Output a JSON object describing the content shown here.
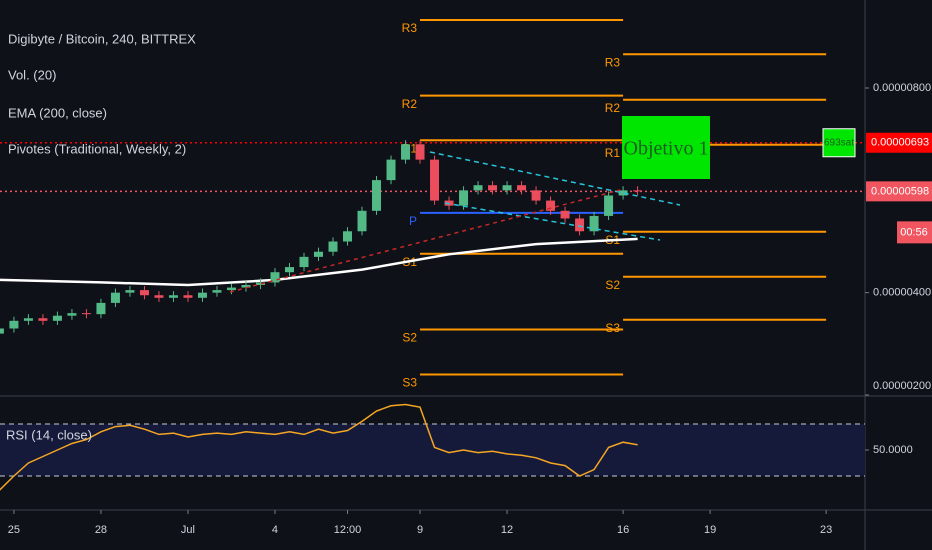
{
  "chart_data": {
    "type": "candlestick",
    "title": "Digibyte / Bitcoin, 240, BITTREX",
    "indicators": [
      "Vol. (20)",
      "EMA (200, close)",
      "Pivotes (Traditional, Weekly, 2)"
    ],
    "x": [
      -0.5,
      0,
      0.5,
      1,
      1.5,
      2,
      2.5,
      3,
      3.5,
      4,
      4.5,
      5,
      5.5,
      6,
      6.5,
      7,
      7.5,
      8,
      8.5,
      9,
      9.5,
      10,
      10.5,
      11,
      11.5,
      12,
      12.5,
      13,
      13.5,
      14,
      14.5,
      15,
      15.5,
      16,
      16.5,
      17,
      17.5,
      18,
      18.5,
      19,
      19.5,
      20,
      20.5,
      21,
      21.5
    ],
    "open": [
      3.2e-06,
      3.3e-06,
      3.45e-06,
      3.5e-06,
      3.45e-06,
      3.55e-06,
      3.6e-06,
      3.58e-06,
      3.8e-06,
      4e-06,
      4.05e-06,
      3.95e-06,
      3.9e-06,
      3.95e-06,
      3.9e-06,
      4e-06,
      4.05e-06,
      4.1e-06,
      4.15e-06,
      4.2e-06,
      4.4e-06,
      4.5e-06,
      4.7e-06,
      4.8e-06,
      5e-06,
      5.2e-06,
      5.6e-06,
      6.2e-06,
      6.6e-06,
      6.9e-06,
      6.6e-06,
      5.8e-06,
      5.7e-06,
      6e-06,
      6.1e-06,
      6e-06,
      6.1e-06,
      6e-06,
      5.8e-06,
      5.6e-06,
      5.45e-06,
      5.2e-06,
      5.5e-06,
      5.9e-06,
      6e-06
    ],
    "high": [
      3.38e-06,
      3.53e-06,
      3.58e-06,
      3.58e-06,
      3.63e-06,
      3.68e-06,
      3.68e-06,
      3.88e-06,
      4.08e-06,
      4.13e-06,
      4.13e-06,
      4.03e-06,
      4.03e-06,
      4.03e-06,
      4.08e-06,
      4.13e-06,
      4.18e-06,
      4.23e-06,
      4.28e-06,
      4.48e-06,
      4.58e-06,
      4.78e-06,
      4.88e-06,
      5.08e-06,
      5.28e-06,
      5.68e-06,
      6.28e-06,
      6.68e-06,
      6.98e-06,
      6.98e-06,
      6.68e-06,
      5.88e-06,
      6.08e-06,
      6.18e-06,
      6.18e-06,
      6.18e-06,
      6.18e-06,
      6.08e-06,
      5.88e-06,
      5.68e-06,
      5.53e-06,
      5.58e-06,
      5.98e-06,
      6.08e-06,
      6.08e-06
    ],
    "low": [
      3.12e-06,
      3.22e-06,
      3.37e-06,
      3.37e-06,
      3.37e-06,
      3.47e-06,
      3.5e-06,
      3.5e-06,
      3.72e-06,
      3.92e-06,
      3.87e-06,
      3.82e-06,
      3.82e-06,
      3.82e-06,
      3.82e-06,
      3.92e-06,
      3.97e-06,
      4.02e-06,
      4.07e-06,
      4.12e-06,
      4.32e-06,
      4.42e-06,
      4.62e-06,
      4.72e-06,
      4.92e-06,
      5.12e-06,
      5.52e-06,
      6.12e-06,
      6.52e-06,
      6.52e-06,
      5.72e-06,
      5.62e-06,
      5.62e-06,
      5.92e-06,
      5.92e-06,
      5.92e-06,
      5.92e-06,
      5.72e-06,
      5.52e-06,
      5.37e-06,
      5.12e-06,
      5.12e-06,
      5.42e-06,
      5.82e-06,
      5.9e-06
    ],
    "close": [
      3.3e-06,
      3.45e-06,
      3.5e-06,
      3.45e-06,
      3.55e-06,
      3.6e-06,
      3.58e-06,
      3.8e-06,
      4e-06,
      4.05e-06,
      3.95e-06,
      3.9e-06,
      3.95e-06,
      3.9e-06,
      4e-06,
      4.05e-06,
      4.1e-06,
      4.15e-06,
      4.2e-06,
      4.4e-06,
      4.5e-06,
      4.7e-06,
      4.8e-06,
      5e-06,
      5.2e-06,
      5.6e-06,
      6.2e-06,
      6.6e-06,
      6.9e-06,
      6.6e-06,
      5.8e-06,
      5.7e-06,
      6e-06,
      6.1e-06,
      6e-06,
      6.1e-06,
      6e-06,
      5.8e-06,
      5.6e-06,
      5.45e-06,
      5.2e-06,
      5.5e-06,
      5.9e-06,
      6e-06,
      5.98e-06
    ],
    "up_color": "#53b987",
    "down_color": "#eb4d5c",
    "ema": {
      "x": [
        -0.5,
        3,
        6,
        9,
        12,
        15,
        18,
        21.5
      ],
      "values": [
        4.25e-06,
        4.2e-06,
        4.15e-06,
        4.25e-06,
        4.45e-06,
        4.75e-06,
        4.95e-06,
        5.05e-06
      ],
      "color": "#ffffff"
    },
    "pivots": [
      {
        "start": 14,
        "end": 21,
        "levels": [
          {
            "label": "R3",
            "value": 9.33e-06
          },
          {
            "label": "R2",
            "value": 7.85e-06
          },
          {
            "label": "R1",
            "value": 6.98e-06
          },
          {
            "label": "P",
            "value": 5.56e-06,
            "color": "#2962ff"
          },
          {
            "label": "S1",
            "value": 4.76e-06
          },
          {
            "label": "S2",
            "value": 3.28e-06
          },
          {
            "label": "S3",
            "value": 2.4e-06
          }
        ]
      },
      {
        "start": 21,
        "end": 28,
        "levels": [
          {
            "label": "R3",
            "value": 8.66e-06
          },
          {
            "label": "R2",
            "value": 7.77e-06
          },
          {
            "label": "R1",
            "value": 6.89e-06
          },
          {
            "label": "S1",
            "value": 5.19e-06
          },
          {
            "label": "S2",
            "value": 4.31e-06
          },
          {
            "label": "S3",
            "value": 3.47e-06
          }
        ]
      }
    ],
    "pivot_color": "#ff9800",
    "price_lines": [
      {
        "value": 6.93e-06,
        "label": "0.00000693",
        "color": "#ff0000"
      },
      {
        "value": 5.98e-06,
        "label": "0.00000598",
        "color": "#f05560"
      }
    ],
    "countdown": "00:56",
    "sat_tag": "693sat",
    "annotation": "Objetivo 1",
    "xlim": [
      -0.48,
      29.34
    ],
    "xticks": [
      {
        "value": 0,
        "label": "25"
      },
      {
        "value": 3,
        "label": "28"
      },
      {
        "value": 6,
        "label": "Jul"
      },
      {
        "value": 9,
        "label": "4"
      },
      {
        "value": 11.5,
        "label": "12:00"
      },
      {
        "value": 14,
        "label": "9"
      },
      {
        "value": 17,
        "label": "12"
      },
      {
        "value": 21,
        "label": "16"
      },
      {
        "value": 24,
        "label": "19"
      },
      {
        "value": 28,
        "label": "23"
      }
    ],
    "ylim": [
      2e-06,
      9.72e-06
    ],
    "yticks": [
      {
        "value": 8e-06,
        "label": "0.00000800"
      },
      {
        "value": 4e-06,
        "label": "0.00000400"
      },
      {
        "value": 2e-06,
        "label": "0.00000200"
      }
    ],
    "rsi": {
      "title": "RSI (14, close)",
      "color": "#f5a623",
      "values": [
        19,
        30,
        40,
        45,
        50,
        55,
        58,
        64,
        68,
        69,
        66,
        62,
        63,
        60,
        62,
        63,
        62,
        64,
        63,
        62,
        64,
        62,
        66,
        63,
        65,
        72,
        80,
        84,
        85,
        83,
        52,
        48,
        50,
        48,
        49,
        47,
        46,
        44,
        40,
        38,
        30,
        35,
        52,
        56,
        54
      ],
      "ylim": [
        3.8,
        90.8
      ],
      "yticks": [
        {
          "value": 50,
          "label": "50.0000"
        }
      ],
      "bands": [
        70,
        30
      ]
    }
  }
}
